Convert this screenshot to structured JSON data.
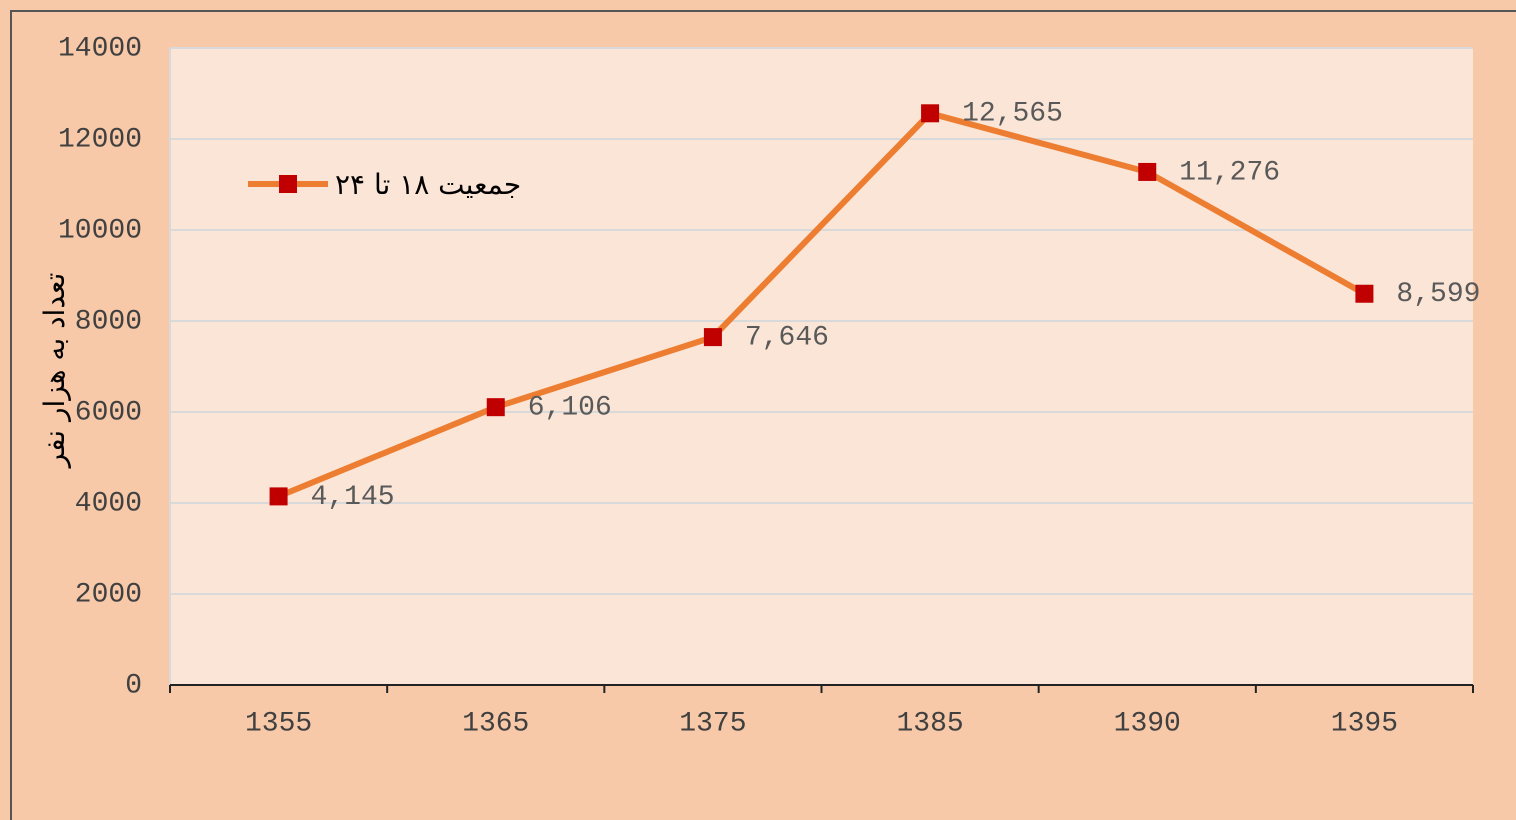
{
  "chart_data": {
    "type": "line",
    "y_label": "تعداد به هزار نفر",
    "categories": [
      "1355",
      "1365",
      "1375",
      "1385",
      "1390",
      "1395"
    ],
    "series": [
      {
        "name": "جمعیت ۱۸ تا ۲۴",
        "color": "#ed7d31",
        "marker_color": "#c00000",
        "values": [
          4145,
          6106,
          7646,
          12565,
          11276,
          8599
        ],
        "value_labels": [
          "4,145",
          "6,106",
          "7,646",
          "12,565",
          "11,276",
          "8,599"
        ]
      }
    ],
    "ylim": [
      0,
      14000
    ],
    "yticks": [
      0,
      2000,
      4000,
      6000,
      8000,
      10000,
      12000,
      14000
    ],
    "grid": true,
    "legend": "upper left"
  }
}
